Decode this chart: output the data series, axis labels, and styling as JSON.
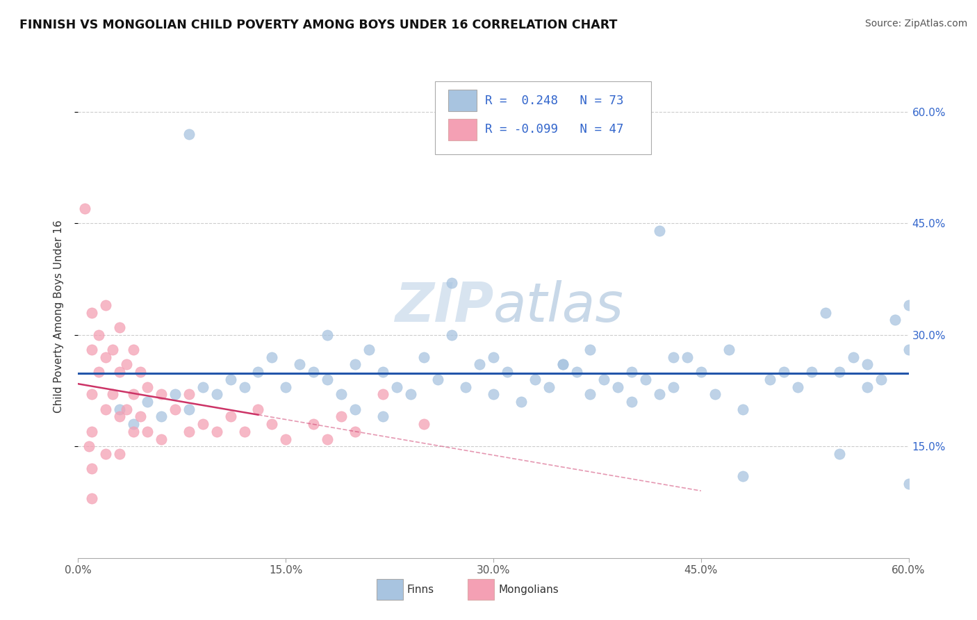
{
  "title": "FINNISH VS MONGOLIAN CHILD POVERTY AMONG BOYS UNDER 16 CORRELATION CHART",
  "source": "Source: ZipAtlas.com",
  "ylabel": "Child Poverty Among Boys Under 16",
  "xlim": [
    0.0,
    0.6
  ],
  "ylim": [
    0.0,
    0.65
  ],
  "xtick_vals": [
    0.0,
    0.15,
    0.3,
    0.45,
    0.6
  ],
  "xtick_labels": [
    "0.0%",
    "15.0%",
    "30.0%",
    "45.0%",
    "60.0%"
  ],
  "ytick_vals": [
    0.15,
    0.3,
    0.45,
    0.6
  ],
  "ytick_labels": [
    "15.0%",
    "30.0%",
    "45.0%",
    "60.0%"
  ],
  "blue_color": "#a8c4e0",
  "pink_color": "#f4a0b4",
  "blue_line_color": "#2255aa",
  "pink_line_color": "#cc3366",
  "legend_text_color": "#3366cc",
  "watermark_color": "#d8e4f0",
  "finns_x": [
    0.03,
    0.04,
    0.05,
    0.06,
    0.07,
    0.08,
    0.09,
    0.1,
    0.11,
    0.12,
    0.13,
    0.14,
    0.15,
    0.16,
    0.17,
    0.18,
    0.19,
    0.2,
    0.2,
    0.21,
    0.22,
    0.22,
    0.23,
    0.24,
    0.25,
    0.26,
    0.27,
    0.28,
    0.29,
    0.3,
    0.3,
    0.31,
    0.32,
    0.33,
    0.34,
    0.35,
    0.36,
    0.37,
    0.37,
    0.38,
    0.39,
    0.4,
    0.4,
    0.41,
    0.42,
    0.43,
    0.44,
    0.45,
    0.46,
    0.47,
    0.48,
    0.5,
    0.51,
    0.52,
    0.53,
    0.54,
    0.55,
    0.56,
    0.57,
    0.57,
    0.58,
    0.59,
    0.6,
    0.6,
    0.42,
    0.27,
    0.18,
    0.08,
    0.43,
    0.35,
    0.48,
    0.55,
    0.6
  ],
  "finns_y": [
    0.2,
    0.18,
    0.21,
    0.19,
    0.22,
    0.2,
    0.23,
    0.22,
    0.24,
    0.23,
    0.25,
    0.27,
    0.23,
    0.26,
    0.25,
    0.24,
    0.22,
    0.26,
    0.2,
    0.28,
    0.19,
    0.25,
    0.23,
    0.22,
    0.27,
    0.24,
    0.3,
    0.23,
    0.26,
    0.22,
    0.27,
    0.25,
    0.21,
    0.24,
    0.23,
    0.26,
    0.25,
    0.28,
    0.22,
    0.24,
    0.23,
    0.25,
    0.21,
    0.24,
    0.22,
    0.23,
    0.27,
    0.25,
    0.22,
    0.28,
    0.2,
    0.24,
    0.25,
    0.23,
    0.25,
    0.33,
    0.25,
    0.27,
    0.23,
    0.26,
    0.24,
    0.32,
    0.34,
    0.28,
    0.44,
    0.37,
    0.3,
    0.57,
    0.27,
    0.26,
    0.11,
    0.14,
    0.1
  ],
  "mongolians_x": [
    0.005,
    0.008,
    0.01,
    0.01,
    0.01,
    0.01,
    0.01,
    0.01,
    0.015,
    0.015,
    0.02,
    0.02,
    0.02,
    0.02,
    0.025,
    0.025,
    0.03,
    0.03,
    0.03,
    0.03,
    0.035,
    0.035,
    0.04,
    0.04,
    0.04,
    0.045,
    0.045,
    0.05,
    0.05,
    0.06,
    0.06,
    0.07,
    0.08,
    0.08,
    0.09,
    0.1,
    0.11,
    0.12,
    0.13,
    0.14,
    0.15,
    0.17,
    0.18,
    0.19,
    0.2,
    0.22,
    0.25
  ],
  "mongolians_y": [
    0.47,
    0.15,
    0.33,
    0.28,
    0.22,
    0.17,
    0.12,
    0.08,
    0.3,
    0.25,
    0.34,
    0.27,
    0.2,
    0.14,
    0.28,
    0.22,
    0.31,
    0.25,
    0.19,
    0.14,
    0.26,
    0.2,
    0.28,
    0.22,
    0.17,
    0.25,
    0.19,
    0.23,
    0.17,
    0.22,
    0.16,
    0.2,
    0.22,
    0.17,
    0.18,
    0.17,
    0.19,
    0.17,
    0.2,
    0.18,
    0.16,
    0.18,
    0.16,
    0.19,
    0.17,
    0.22,
    0.18
  ]
}
